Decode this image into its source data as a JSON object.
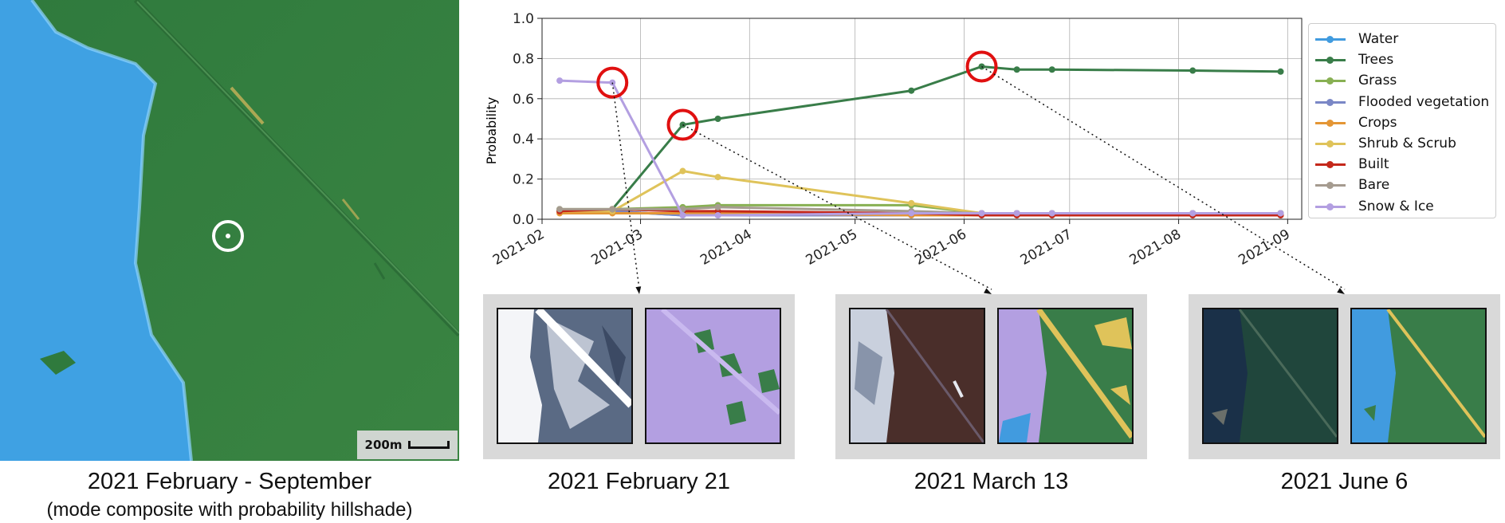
{
  "colors": {
    "water": "#419bdf",
    "trees": "#397d49",
    "snow": "#b39fe1",
    "highlight": "#e01010",
    "panel_bg": "#d9d9d9"
  },
  "main_map": {
    "scale_label": "200m",
    "caption": "2021 February - September",
    "subcaption": "(mode composite with probability hillshade)"
  },
  "panels": [
    {
      "caption": "2021 February 21"
    },
    {
      "caption": "2021 March 13"
    },
    {
      "caption": "2021 June 6"
    }
  ],
  "chart_data": {
    "type": "line",
    "ylabel": "Probability",
    "xlabel": "",
    "ylim": [
      0,
      1.0
    ],
    "xlim": [
      "2021-02-01",
      "2021-09-05"
    ],
    "y_ticks": [
      "0.0",
      "0.2",
      "0.4",
      "0.6",
      "0.8",
      "1.0"
    ],
    "x_ticks": [
      "2021-02",
      "2021-03",
      "2021-04",
      "2021-05",
      "2021-06",
      "2021-07",
      "2021-08",
      "2021-09"
    ],
    "x_tick_dates": [
      "2021-02-01",
      "2021-03-01",
      "2021-04-01",
      "2021-05-01",
      "2021-06-01",
      "2021-07-01",
      "2021-08-01",
      "2021-09-01"
    ],
    "grid": true,
    "legend_position": "right",
    "x": [
      "2021-02-06",
      "2021-02-21",
      "2021-03-13",
      "2021-03-23",
      "2021-05-17",
      "2021-06-06",
      "2021-06-16",
      "2021-06-26",
      "2021-08-05",
      "2021-08-30"
    ],
    "series": [
      {
        "name": "Water",
        "color": "#419bdf",
        "values": [
          0.04,
          0.04,
          0.02,
          0.02,
          0.02,
          0.03,
          0.03,
          0.03,
          0.03,
          0.03
        ]
      },
      {
        "name": "Trees",
        "color": "#397d49",
        "values": [
          0.04,
          0.05,
          0.47,
          0.5,
          0.64,
          0.76,
          0.745,
          0.745,
          0.74,
          0.735
        ]
      },
      {
        "name": "Grass",
        "color": "#88b053",
        "values": [
          0.05,
          0.05,
          0.06,
          0.07,
          0.07,
          0.03,
          0.03,
          0.03,
          0.03,
          0.03
        ]
      },
      {
        "name": "Flooded vegetation",
        "color": "#7a87c6",
        "values": [
          0.04,
          0.04,
          0.02,
          0.02,
          0.02,
          0.02,
          0.02,
          0.02,
          0.02,
          0.02
        ]
      },
      {
        "name": "Crops",
        "color": "#e49635",
        "values": [
          0.03,
          0.03,
          0.03,
          0.03,
          0.02,
          0.02,
          0.02,
          0.02,
          0.02,
          0.02
        ]
      },
      {
        "name": "Shrub & Scrub",
        "color": "#dfc35a",
        "values": [
          0.04,
          0.04,
          0.24,
          0.21,
          0.08,
          0.03,
          0.03,
          0.03,
          0.03,
          0.03
        ]
      },
      {
        "name": "Built",
        "color": "#c4281b",
        "values": [
          0.04,
          0.05,
          0.04,
          0.04,
          0.03,
          0.02,
          0.02,
          0.02,
          0.02,
          0.02
        ]
      },
      {
        "name": "Bare",
        "color": "#a59b8f",
        "values": [
          0.05,
          0.05,
          0.05,
          0.06,
          0.04,
          0.03,
          0.03,
          0.03,
          0.03,
          0.03
        ]
      },
      {
        "name": "Snow & Ice",
        "color": "#b39fe1",
        "values": [
          0.69,
          0.68,
          0.02,
          0.02,
          0.03,
          0.03,
          0.03,
          0.03,
          0.03,
          0.03
        ]
      }
    ],
    "highlights": [
      {
        "date": "2021-02-21",
        "value": 0.68,
        "target_panel": 0
      },
      {
        "date": "2021-03-13",
        "value": 0.47,
        "target_panel": 1
      },
      {
        "date": "2021-06-06",
        "value": 0.76,
        "target_panel": 2
      }
    ]
  }
}
